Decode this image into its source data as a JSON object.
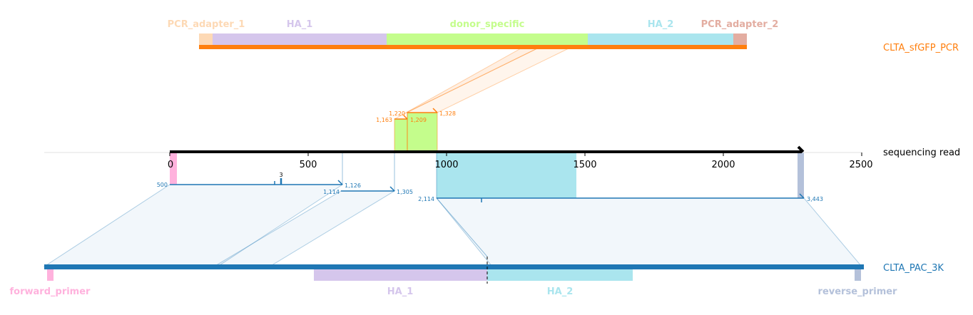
{
  "references": {
    "top": {
      "name": "CLTA_sfGFP_PCR",
      "color": "#ff7f0e",
      "features": [
        {
          "label": "PCR_adapter_1",
          "color": "#fdd9b5"
        },
        {
          "label": "HA_1",
          "color": "#d5c6ec"
        },
        {
          "label": "donor_specific",
          "color": "#c4fd8c"
        },
        {
          "label": "HA_2",
          "color": "#aae5ee"
        },
        {
          "label": "PCR_adapter_2",
          "color": "#e3ada1"
        }
      ]
    },
    "bottom": {
      "name": "CLTA_PAC_3K",
      "color": "#1f77b4",
      "features": [
        {
          "label": "forward_primer",
          "color": "#ffb2dd"
        },
        {
          "label": "HA_1",
          "color": "#d5c6ec"
        },
        {
          "label": "HA_2",
          "color": "#aae5ee"
        },
        {
          "label": "reverse_primer",
          "color": "#b4c1da"
        }
      ]
    }
  },
  "read": {
    "name": "sequencing read",
    "axis": {
      "min": 0,
      "max": 2500,
      "ticks": [
        "0",
        "500",
        "1000",
        "1500",
        "2000",
        "2500"
      ]
    }
  },
  "alignments": {
    "top": [
      {
        "start": "1,163",
        "end": "1,209"
      },
      {
        "start": "1,220",
        "end": "1,328"
      }
    ],
    "bottom": [
      {
        "start": "500",
        "end": "1,126"
      },
      {
        "start": "1,114",
        "end": "1,305"
      },
      {
        "start": "2,114",
        "end": "3,443"
      }
    ],
    "insertion_label": "3"
  }
}
